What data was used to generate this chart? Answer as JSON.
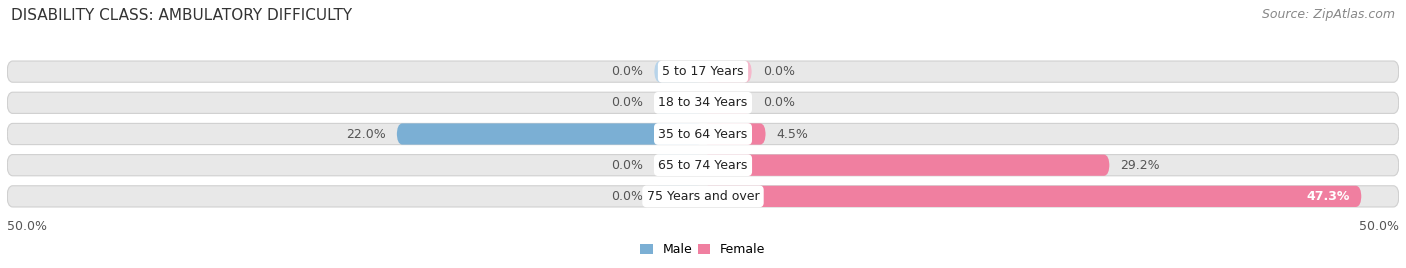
{
  "title": "DISABILITY CLASS: AMBULATORY DIFFICULTY",
  "source": "Source: ZipAtlas.com",
  "categories": [
    "5 to 17 Years",
    "18 to 34 Years",
    "35 to 64 Years",
    "65 to 74 Years",
    "75 Years and over"
  ],
  "male_values": [
    0.0,
    0.0,
    22.0,
    0.0,
    0.0
  ],
  "female_values": [
    0.0,
    0.0,
    4.5,
    29.2,
    47.3
  ],
  "male_stub": 3.5,
  "female_stub": 3.5,
  "male_color": "#7bafd4",
  "female_color": "#f07fa0",
  "male_color_stub": "#b8d4ea",
  "female_color_stub": "#f5b8cb",
  "bar_bg_color": "#e8e8e8",
  "bar_bg_edge_color": "#d0d0d0",
  "bar_height": 0.68,
  "xlim": 50.0,
  "title_fontsize": 11,
  "source_fontsize": 9,
  "label_fontsize": 9,
  "value_fontsize": 9,
  "axis_fontsize": 9,
  "legend_fontsize": 9,
  "figsize": [
    14.06,
    2.68
  ],
  "dpi": 100
}
